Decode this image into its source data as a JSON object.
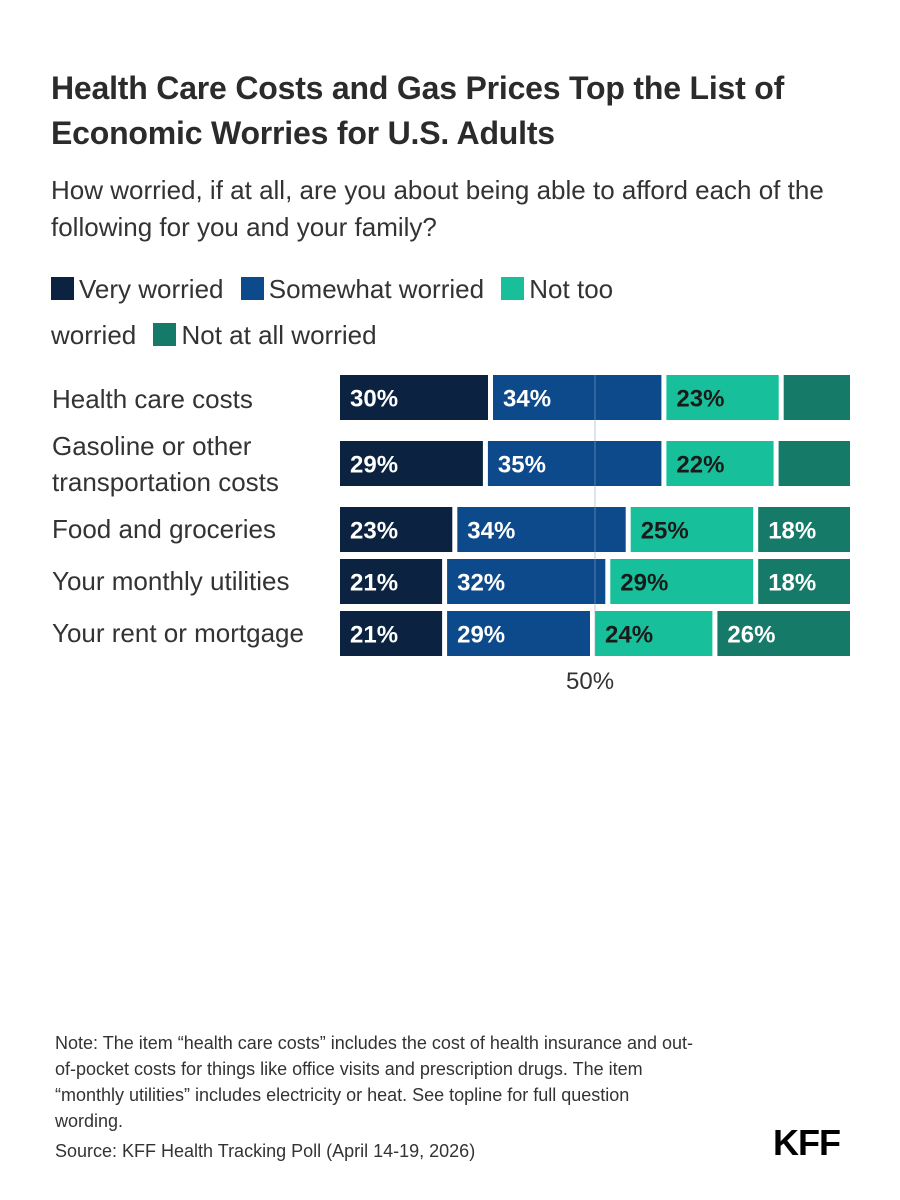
{
  "title": "Health Care Costs and Gas Prices Top the List of Economic Worries for U.S. Adults",
  "subtitle": "How worried, if at all, are you about being able to afford each of the following for you and your family?",
  "colors": {
    "very": "#0b2341",
    "somewhat": "#0d4a8c",
    "not_too": "#17c09a",
    "not_at_all": "#157a67"
  },
  "chart_data": {
    "type": "bar",
    "orientation": "horizontal",
    "stacked": true,
    "xlim": [
      0,
      100
    ],
    "axis_label": "50%",
    "legend_position": "top",
    "categories": [
      "Health care costs",
      "Gasoline or other transportation costs",
      "Food and groceries",
      "Your monthly utilities",
      "Your rent or mortgage"
    ],
    "series": [
      {
        "name": "Very worried",
        "color_key": "very",
        "label_color": "#ffffff",
        "values": [
          30,
          29,
          23,
          21,
          21
        ],
        "labels": [
          "30%",
          "29%",
          "23%",
          "21%",
          "21%"
        ]
      },
      {
        "name": "Somewhat worried",
        "color_key": "somewhat",
        "label_color": "#ffffff",
        "values": [
          34,
          35,
          34,
          32,
          29
        ],
        "labels": [
          "34%",
          "35%",
          "34%",
          "32%",
          "29%"
        ]
      },
      {
        "name": "Not too worried",
        "color_key": "not_too",
        "label_color": "#1a1a1a",
        "values": [
          23,
          22,
          25,
          29,
          24
        ],
        "labels": [
          "23%",
          "22%",
          "25%",
          "29%",
          "24%"
        ]
      },
      {
        "name": "Not at all worried",
        "color_key": "not_at_all",
        "label_color": "#ffffff",
        "values": [
          13,
          14,
          18,
          18,
          26
        ],
        "labels": [
          "",
          "",
          "18%",
          "18%",
          "26%"
        ]
      }
    ]
  },
  "note": "Note: The item “health care costs” includes the cost of health insurance and out-of-pocket costs for things like office visits and prescription drugs. The item “monthly utilities” includes electricity or heat. See topline for full question wording.",
  "source": "Source: KFF Health Tracking Poll (April 14-19, 2026)",
  "logo": "KFF"
}
